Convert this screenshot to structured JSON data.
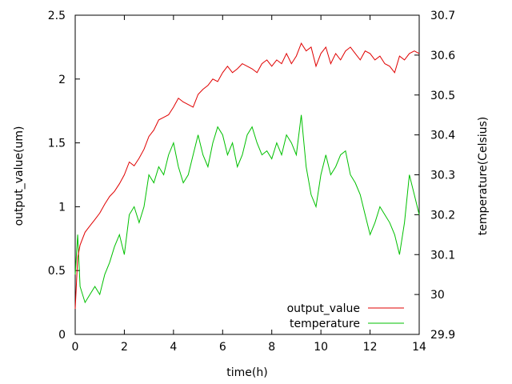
{
  "chart_data": {
    "type": "line",
    "title": "",
    "xlabel": "time(h)",
    "ylabel_left": "output_value(um)",
    "ylabel_right": "temperature(Celsius)",
    "xlim": [
      0,
      14
    ],
    "ylim_left": [
      0,
      2.5
    ],
    "ylim_right": [
      29.9,
      30.7
    ],
    "xticks": [
      "0",
      "2",
      "4",
      "6",
      "8",
      "10",
      "12",
      "14"
    ],
    "yticks_left": [
      "0",
      "0.5",
      "1",
      "1.5",
      "2",
      "2.5"
    ],
    "yticks_right": [
      "29.9",
      "30",
      "30.1",
      "30.2",
      "30.3",
      "30.4",
      "30.5",
      "30.6",
      "30.7"
    ],
    "grid": false,
    "legend_position": "bottom-right",
    "series": [
      {
        "name": "output_value",
        "axis": "left",
        "color": "#e00000",
        "x": [
          0.0,
          0.1,
          0.2,
          0.4,
          0.6,
          0.8,
          1.0,
          1.2,
          1.4,
          1.6,
          1.8,
          2.0,
          2.2,
          2.4,
          2.6,
          2.8,
          3.0,
          3.2,
          3.4,
          3.6,
          3.8,
          4.0,
          4.2,
          4.4,
          4.6,
          4.8,
          5.0,
          5.2,
          5.4,
          5.6,
          5.8,
          6.0,
          6.2,
          6.4,
          6.6,
          6.8,
          7.0,
          7.2,
          7.4,
          7.6,
          7.8,
          8.0,
          8.2,
          8.4,
          8.6,
          8.8,
          9.0,
          9.2,
          9.4,
          9.6,
          9.8,
          10.0,
          10.2,
          10.4,
          10.6,
          10.8,
          11.0,
          11.2,
          11.4,
          11.6,
          11.8,
          12.0,
          12.2,
          12.4,
          12.6,
          12.8,
          13.0,
          13.2,
          13.4,
          13.6,
          13.8,
          14.0
        ],
        "values": [
          0.2,
          0.6,
          0.7,
          0.8,
          0.85,
          0.9,
          0.95,
          1.02,
          1.08,
          1.12,
          1.18,
          1.25,
          1.35,
          1.32,
          1.38,
          1.45,
          1.55,
          1.6,
          1.68,
          1.7,
          1.72,
          1.78,
          1.85,
          1.82,
          1.8,
          1.78,
          1.88,
          1.92,
          1.95,
          2.0,
          1.98,
          2.05,
          2.1,
          2.05,
          2.08,
          2.12,
          2.1,
          2.08,
          2.05,
          2.12,
          2.15,
          2.1,
          2.15,
          2.12,
          2.2,
          2.12,
          2.18,
          2.28,
          2.22,
          2.25,
          2.1,
          2.2,
          2.25,
          2.12,
          2.2,
          2.15,
          2.22,
          2.25,
          2.2,
          2.15,
          2.22,
          2.2,
          2.15,
          2.18,
          2.12,
          2.1,
          2.05,
          2.18,
          2.15,
          2.2,
          2.22,
          2.2
        ]
      },
      {
        "name": "temperature",
        "axis": "right",
        "color": "#00c000",
        "x": [
          0.0,
          0.1,
          0.2,
          0.4,
          0.6,
          0.8,
          1.0,
          1.2,
          1.4,
          1.6,
          1.8,
          2.0,
          2.2,
          2.4,
          2.6,
          2.8,
          3.0,
          3.2,
          3.4,
          3.6,
          3.8,
          4.0,
          4.2,
          4.4,
          4.6,
          4.8,
          5.0,
          5.2,
          5.4,
          5.6,
          5.8,
          6.0,
          6.2,
          6.4,
          6.6,
          6.8,
          7.0,
          7.2,
          7.4,
          7.6,
          7.8,
          8.0,
          8.2,
          8.4,
          8.6,
          8.8,
          9.0,
          9.2,
          9.4,
          9.6,
          9.8,
          10.0,
          10.2,
          10.4,
          10.6,
          10.8,
          11.0,
          11.2,
          11.4,
          11.6,
          11.8,
          12.0,
          12.2,
          12.4,
          12.6,
          12.8,
          13.0,
          13.2,
          13.4,
          13.6,
          13.8,
          14.0
        ],
        "values": [
          30.05,
          30.15,
          30.02,
          29.98,
          30.0,
          30.02,
          30.0,
          30.05,
          30.08,
          30.12,
          30.15,
          30.1,
          30.2,
          30.22,
          30.18,
          30.22,
          30.3,
          30.28,
          30.32,
          30.3,
          30.35,
          30.38,
          30.32,
          30.28,
          30.3,
          30.35,
          30.4,
          30.35,
          30.32,
          30.38,
          30.42,
          30.4,
          30.35,
          30.38,
          30.32,
          30.35,
          30.4,
          30.42,
          30.38,
          30.35,
          30.36,
          30.34,
          30.38,
          30.35,
          30.4,
          30.38,
          30.35,
          30.45,
          30.32,
          30.25,
          30.22,
          30.3,
          30.35,
          30.3,
          30.32,
          30.35,
          30.36,
          30.3,
          30.28,
          30.25,
          30.2,
          30.15,
          30.18,
          30.22,
          30.2,
          30.18,
          30.15,
          30.1,
          30.18,
          30.3,
          30.25,
          30.2
        ]
      }
    ]
  }
}
